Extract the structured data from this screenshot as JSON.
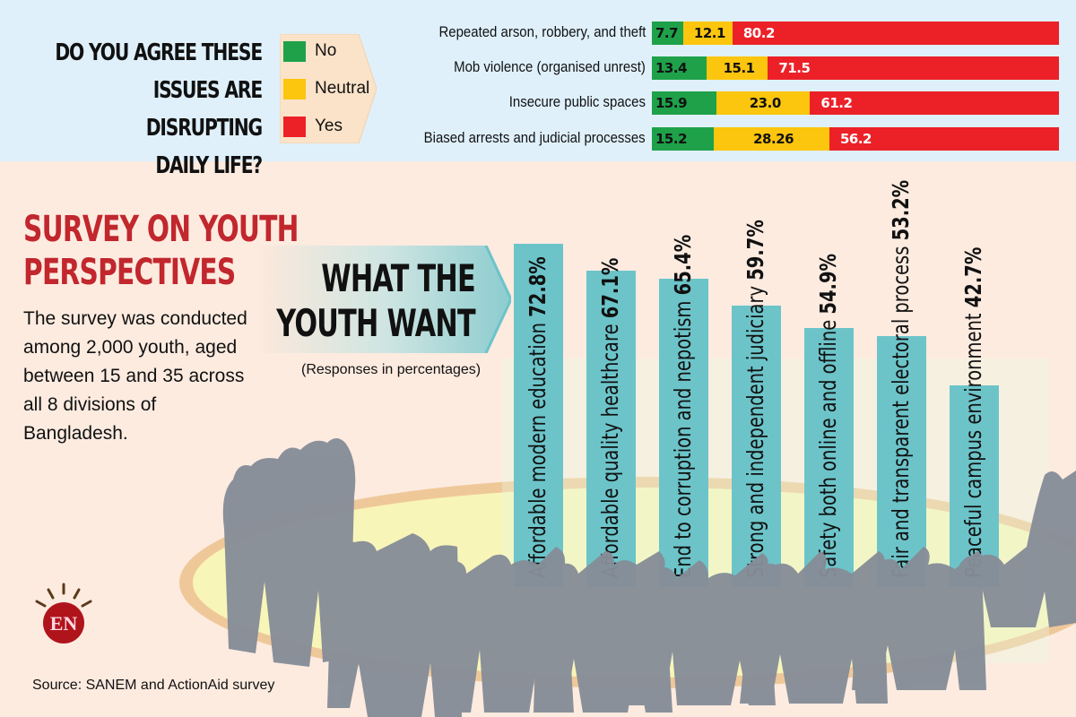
{
  "top_section": {
    "question": [
      "DO YOU AGREE THESE",
      "ISSUES ARE DISRUPTING",
      "DAILY LIFE?"
    ],
    "legend": [
      {
        "label": "No",
        "color": "#1fa14a"
      },
      {
        "label": "Neutral",
        "color": "#fcc50e"
      },
      {
        "label": "Yes",
        "color": "#ec2128"
      }
    ]
  },
  "survey": {
    "title": [
      "SURVEY ON YOUTH",
      "PERSPECTIVES"
    ],
    "description": [
      "The survey was conducted",
      "among 2,000 youth, aged",
      "between 15 and 35 across",
      "all 8 divisions of",
      "Bangladesh."
    ],
    "banner": [
      "WHAT THE",
      "YOUTH WANT"
    ],
    "note": "(Responses in percentages)"
  },
  "logo": {
    "text": "EN",
    "color": "#b0141b"
  },
  "source": "Source: SANEM and ActionAid survey",
  "colors": {
    "bar": "#6cc4c9",
    "title_red": "#c1272d",
    "silhouette": "#868d98"
  },
  "chart_data": [
    {
      "type": "bar",
      "orientation": "horizontal-stacked",
      "title": "Do you agree these issues are disrupting daily life?",
      "categories": [
        "Repeated arson, robbery, and theft",
        "Mob violence (organised unrest)",
        "Insecure public spaces",
        "Biased arrests and judicial processes"
      ],
      "series": [
        {
          "name": "No",
          "values": [
            7.7,
            13.4,
            15.9,
            15.2
          ],
          "labels": [
            "7.7",
            "13.4",
            "15.9",
            "15.2"
          ]
        },
        {
          "name": "Neutral",
          "values": [
            12.1,
            15.1,
            23.0,
            28.26
          ],
          "labels": [
            "12.1",
            "15.1",
            "23.0",
            "28.26"
          ]
        },
        {
          "name": "Yes",
          "values": [
            80.2,
            71.5,
            61.2,
            56.2
          ],
          "labels": [
            "80.2",
            "71.5",
            "61.2",
            "56.2"
          ]
        }
      ],
      "legend": "left",
      "grid": false
    },
    {
      "type": "bar",
      "orientation": "vertical",
      "title": "What the youth want",
      "subtitle": "(Responses in percentages)",
      "categories": [
        "Affordable modern education",
        "Affordable quality healthcare",
        "End to corruption and nepotism",
        "Strong and independent judiciary",
        "Safety both online and offline",
        "Fair and transparent electoral process",
        "Peaceful campus environment"
      ],
      "values": [
        72.8,
        67.1,
        65.4,
        59.7,
        54.9,
        53.2,
        42.7
      ],
      "value_labels": [
        "72.8%",
        "67.1%",
        "65.4%",
        "59.7%",
        "54.9%",
        "53.2%",
        "42.7%"
      ],
      "ylim": [
        0,
        100
      ],
      "grid": false
    }
  ]
}
